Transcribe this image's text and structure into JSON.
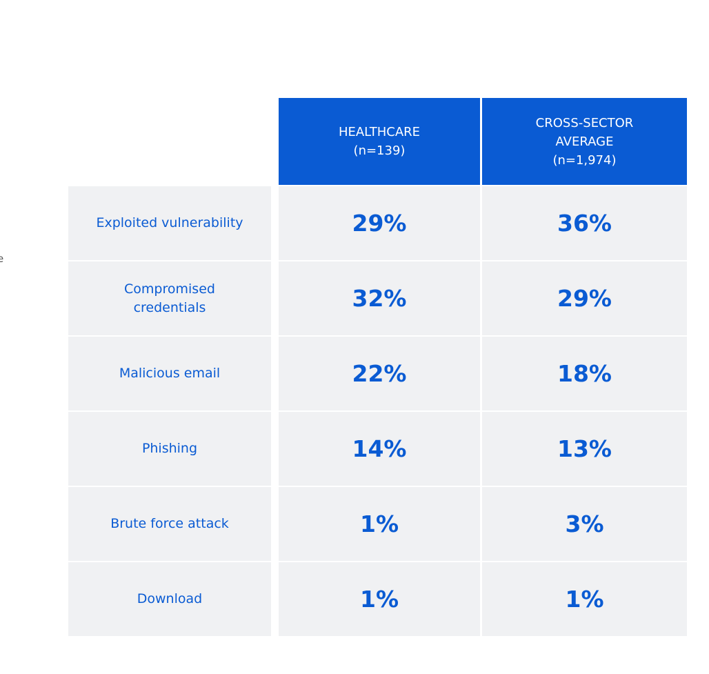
{
  "table": {
    "header": [
      {
        "lines": [
          "HEALTHCARE",
          "(n=139)"
        ]
      },
      {
        "lines": [
          "CROSS-SECTOR",
          "AVERAGE",
          "(n=1,974)"
        ]
      }
    ],
    "rows": [
      {
        "label": [
          "Exploited vulnerability"
        ],
        "cells": [
          "29%",
          "36%"
        ]
      },
      {
        "label": [
          "Compromised",
          "credentials"
        ],
        "cells": [
          "32%",
          "29%"
        ]
      },
      {
        "label": [
          "Malicious email"
        ],
        "cells": [
          "22%",
          "18%"
        ]
      },
      {
        "label": [
          "Phishing"
        ],
        "cells": [
          "14%",
          "13%"
        ]
      },
      {
        "label": [
          "Brute force attack"
        ],
        "cells": [
          "1%",
          "3%"
        ]
      },
      {
        "label": [
          "Download"
        ],
        "cells": [
          "1%",
          "1%"
        ]
      }
    ]
  },
  "edge_fragment": "e"
}
